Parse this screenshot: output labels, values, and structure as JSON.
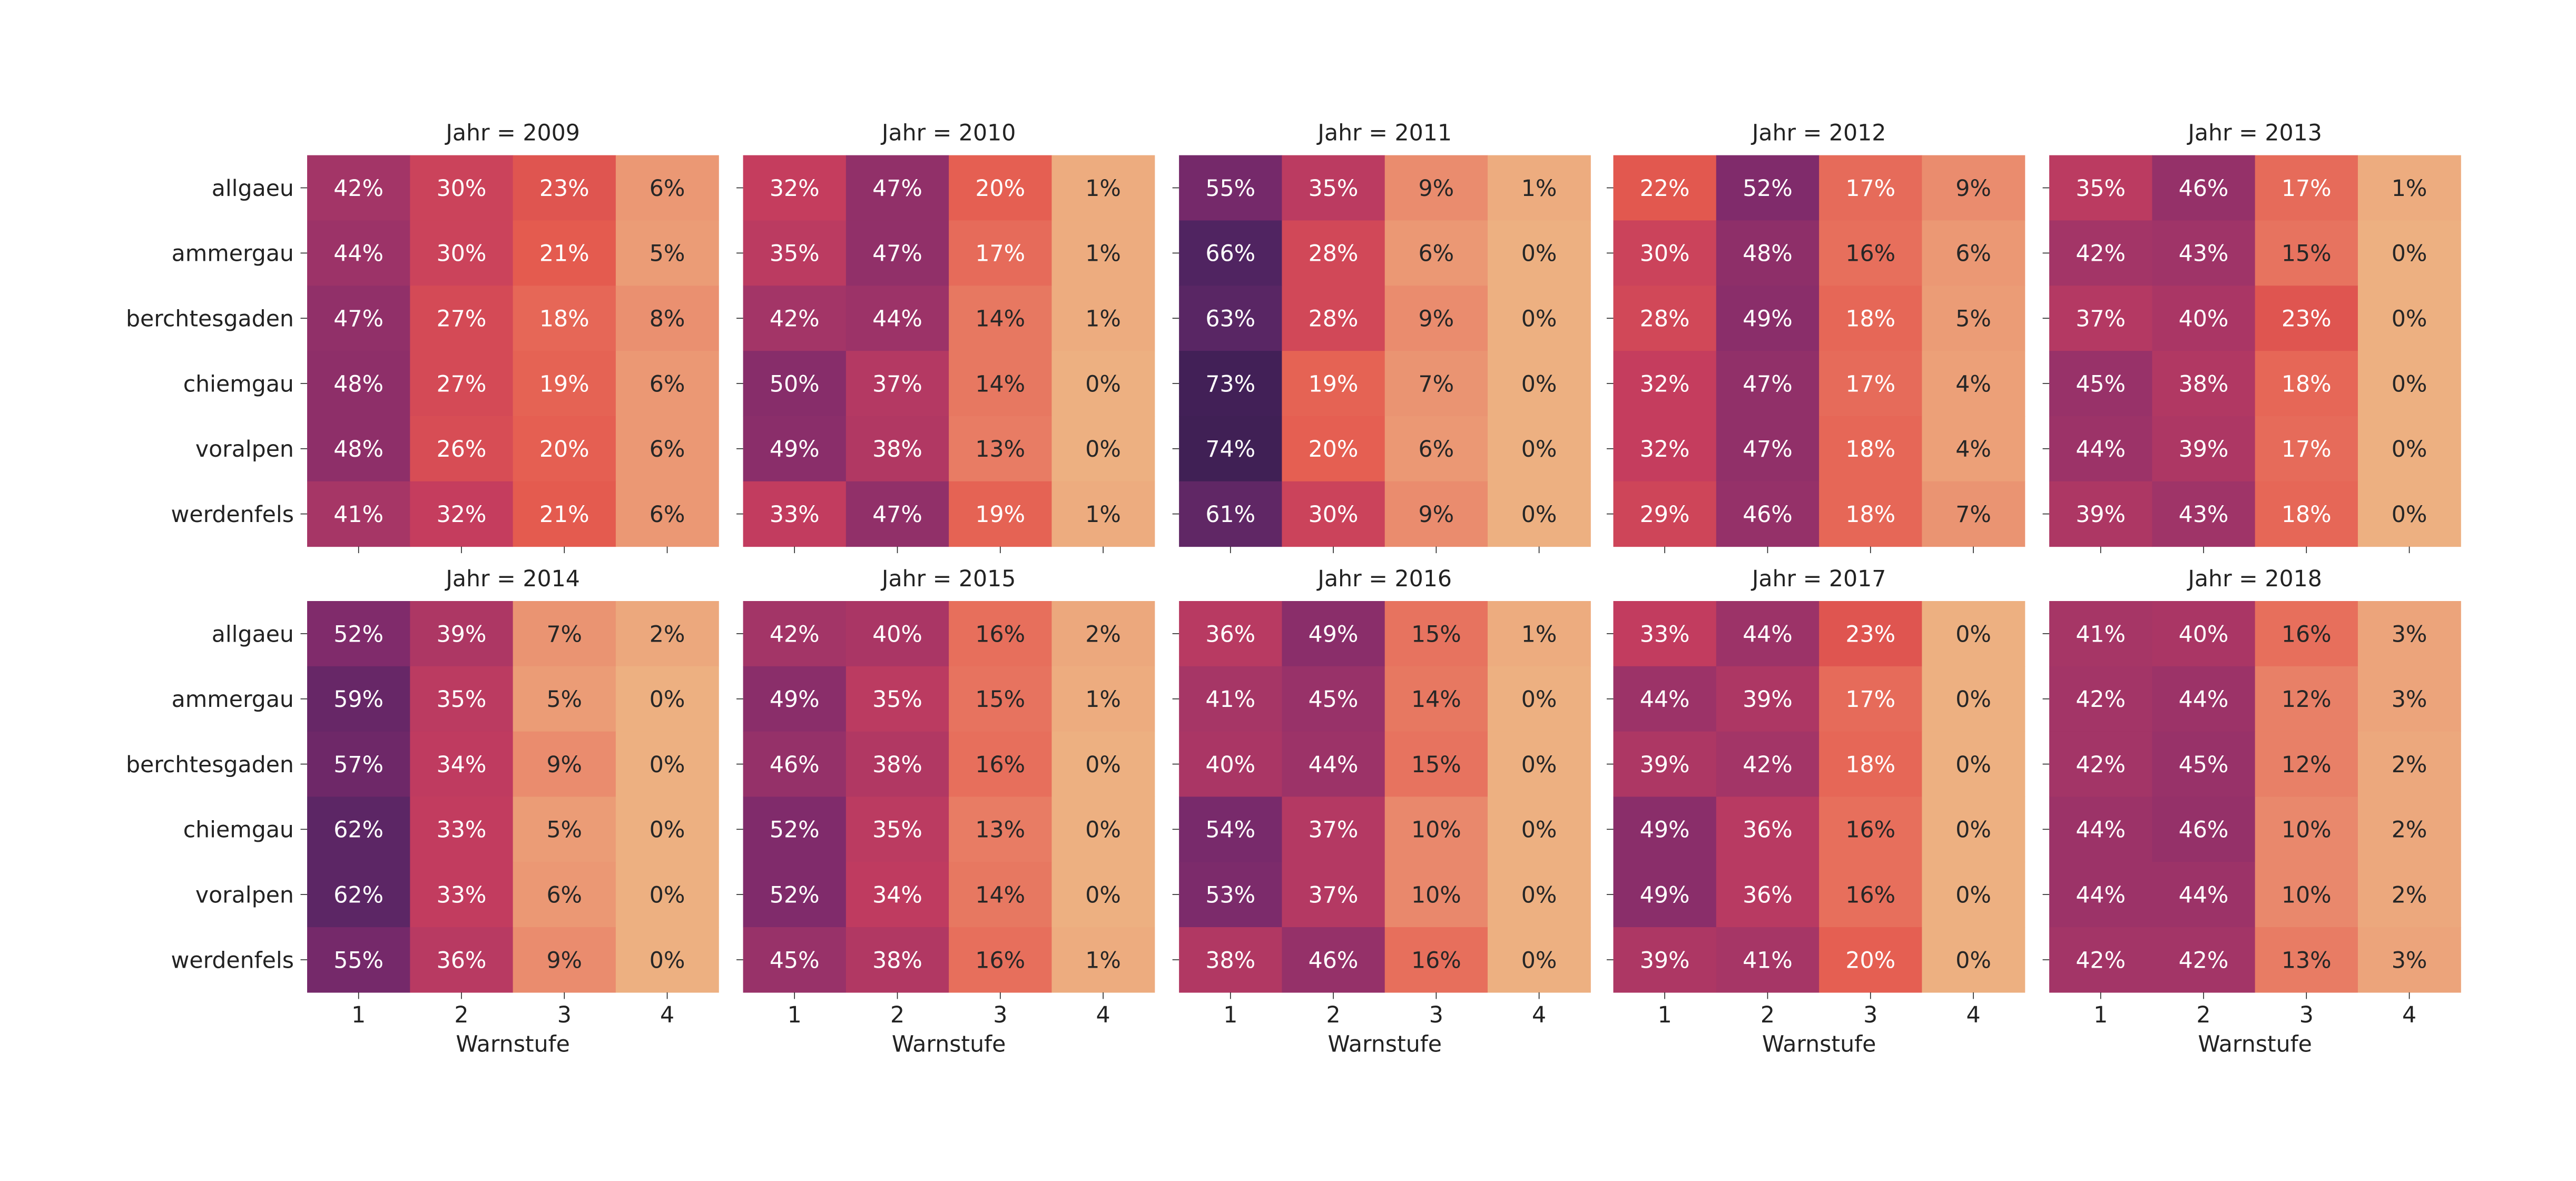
{
  "chart_data": {
    "type": "heatmap",
    "facet_titles": [
      "Jahr = 2009",
      "Jahr = 2010",
      "Jahr = 2011",
      "Jahr = 2012",
      "Jahr = 2013",
      "Jahr = 2014",
      "Jahr = 2015",
      "Jahr = 2016",
      "Jahr = 2017",
      "Jahr = 2018"
    ],
    "rows": [
      "allgaeu",
      "ammergau",
      "berchtesgaden",
      "chiemgau",
      "voralpen",
      "werdenfels"
    ],
    "columns": [
      "1",
      "2",
      "3",
      "4"
    ],
    "xlabel": "Warnstufe",
    "ylabel": "",
    "value_format": "percent",
    "colormap": "flare",
    "colormap_stops": [
      "#edb081",
      "#e9856a",
      "#e4594e",
      "#c53d5e",
      "#a03468",
      "#7a2a6b",
      "#542563",
      "#3e1f54"
    ],
    "panels": [
      {
        "facet": "2009",
        "values": [
          [
            42,
            30,
            23,
            6
          ],
          [
            44,
            30,
            21,
            5
          ],
          [
            47,
            27,
            18,
            8
          ],
          [
            48,
            27,
            19,
            6
          ],
          [
            48,
            26,
            20,
            6
          ],
          [
            41,
            32,
            21,
            6
          ]
        ]
      },
      {
        "facet": "2010",
        "values": [
          [
            32,
            47,
            20,
            1
          ],
          [
            35,
            47,
            17,
            1
          ],
          [
            42,
            44,
            14,
            1
          ],
          [
            50,
            37,
            14,
            0
          ],
          [
            49,
            38,
            13,
            0
          ],
          [
            33,
            47,
            19,
            1
          ]
        ]
      },
      {
        "facet": "2011",
        "values": [
          [
            55,
            35,
            9,
            1
          ],
          [
            66,
            28,
            6,
            0
          ],
          [
            63,
            28,
            9,
            0
          ],
          [
            73,
            19,
            7,
            0
          ],
          [
            74,
            20,
            6,
            0
          ],
          [
            61,
            30,
            9,
            0
          ]
        ]
      },
      {
        "facet": "2012",
        "values": [
          [
            22,
            52,
            17,
            9
          ],
          [
            30,
            48,
            16,
            6
          ],
          [
            28,
            49,
            18,
            5
          ],
          [
            32,
            47,
            17,
            4
          ],
          [
            32,
            47,
            18,
            4
          ],
          [
            29,
            46,
            18,
            7
          ]
        ]
      },
      {
        "facet": "2013",
        "values": [
          [
            35,
            46,
            17,
            1
          ],
          [
            42,
            43,
            15,
            0
          ],
          [
            37,
            40,
            23,
            0
          ],
          [
            45,
            38,
            18,
            0
          ],
          [
            44,
            39,
            17,
            0
          ],
          [
            39,
            43,
            18,
            0
          ]
        ]
      },
      {
        "facet": "2014",
        "values": [
          [
            52,
            39,
            7,
            2
          ],
          [
            59,
            35,
            5,
            0
          ],
          [
            57,
            34,
            9,
            0
          ],
          [
            62,
            33,
            5,
            0
          ],
          [
            62,
            33,
            6,
            0
          ],
          [
            55,
            36,
            9,
            0
          ]
        ]
      },
      {
        "facet": "2015",
        "values": [
          [
            42,
            40,
            16,
            2
          ],
          [
            49,
            35,
            15,
            1
          ],
          [
            46,
            38,
            16,
            0
          ],
          [
            52,
            35,
            13,
            0
          ],
          [
            52,
            34,
            14,
            0
          ],
          [
            45,
            38,
            16,
            1
          ]
        ]
      },
      {
        "facet": "2016",
        "values": [
          [
            36,
            49,
            15,
            1
          ],
          [
            41,
            45,
            14,
            0
          ],
          [
            40,
            44,
            15,
            0
          ],
          [
            54,
            37,
            10,
            0
          ],
          [
            53,
            37,
            10,
            0
          ],
          [
            38,
            46,
            16,
            0
          ]
        ]
      },
      {
        "facet": "2017",
        "values": [
          [
            33,
            44,
            23,
            0
          ],
          [
            44,
            39,
            17,
            0
          ],
          [
            39,
            42,
            18,
            0
          ],
          [
            49,
            36,
            16,
            0
          ],
          [
            49,
            36,
            16,
            0
          ],
          [
            39,
            41,
            20,
            0
          ]
        ]
      },
      {
        "facet": "2018",
        "values": [
          [
            41,
            40,
            16,
            3
          ],
          [
            42,
            44,
            12,
            3
          ],
          [
            42,
            45,
            12,
            2
          ],
          [
            44,
            46,
            10,
            2
          ],
          [
            44,
            44,
            10,
            2
          ],
          [
            42,
            42,
            13,
            3
          ]
        ]
      }
    ]
  }
}
